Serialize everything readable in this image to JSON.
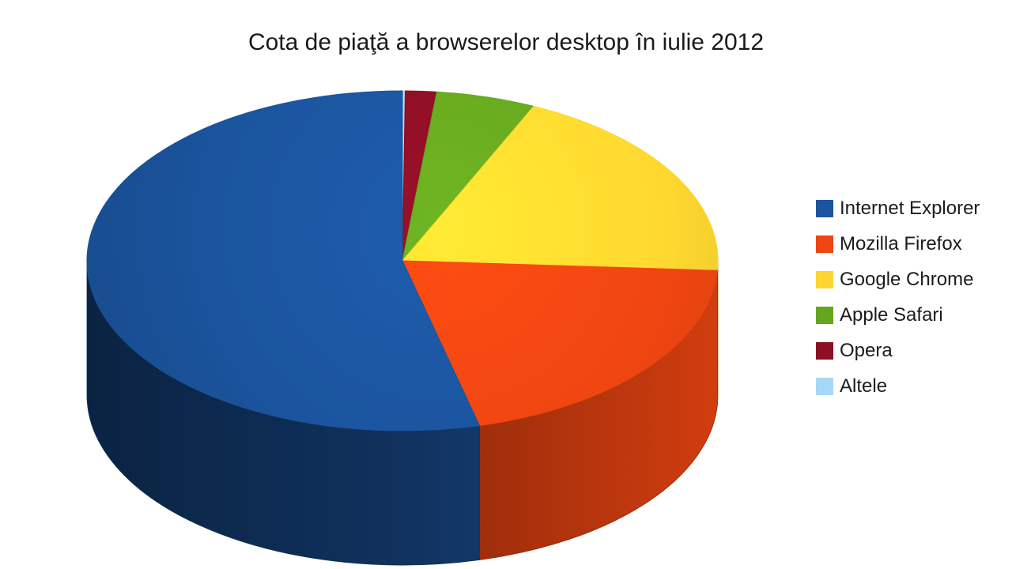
{
  "page": {
    "background": "#FFFFFF"
  },
  "chart_data": {
    "type": "pie",
    "style": "3d",
    "title": "Cota de piaţă a browserelor desktop în iulie 2012",
    "unit": "percent",
    "legend_position": "right",
    "start_angle": "12-oclock",
    "order_clockwise_from_top": [
      "Altele",
      "Opera",
      "Apple Safari",
      "Google Chrome",
      "Mozilla Firefox",
      "Internet Explorer"
    ],
    "slices": [
      {
        "label": "Internet Explorer",
        "value": 53.93,
        "color": "#1B549D"
      },
      {
        "label": "Mozilla Firefox",
        "value": 20.16,
        "color": "#EE4511"
      },
      {
        "label": "Google Chrome",
        "value": 19.08,
        "color": "#FCD62F"
      },
      {
        "label": "Apple Safari",
        "value": 5.09,
        "color": "#65A51F"
      },
      {
        "label": "Opera",
        "value": 1.6,
        "color": "#8C0F24"
      },
      {
        "label": "Altele",
        "value": 0.14,
        "color": "#A7D7F7"
      }
    ]
  }
}
